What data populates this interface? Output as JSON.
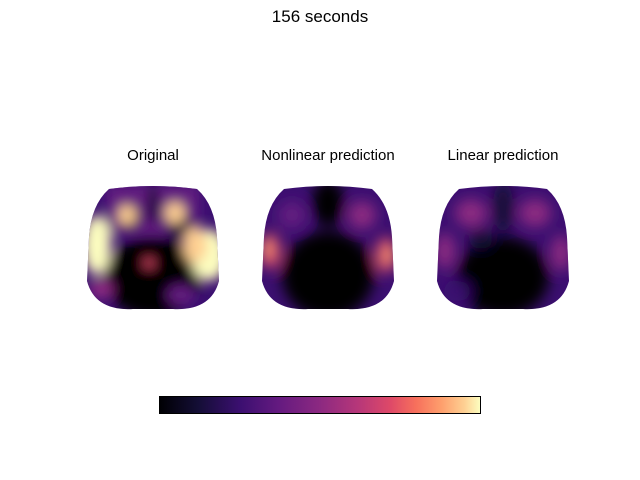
{
  "title": "156 seconds",
  "chart_data": {
    "type": "heatmap",
    "colormap": "magma",
    "panels": [
      {
        "title": "Original"
      },
      {
        "title": "Nonlinear prediction"
      },
      {
        "title": "Linear prediction"
      }
    ],
    "colorbar": {
      "colormap": "magma",
      "tick_labels": []
    }
  }
}
